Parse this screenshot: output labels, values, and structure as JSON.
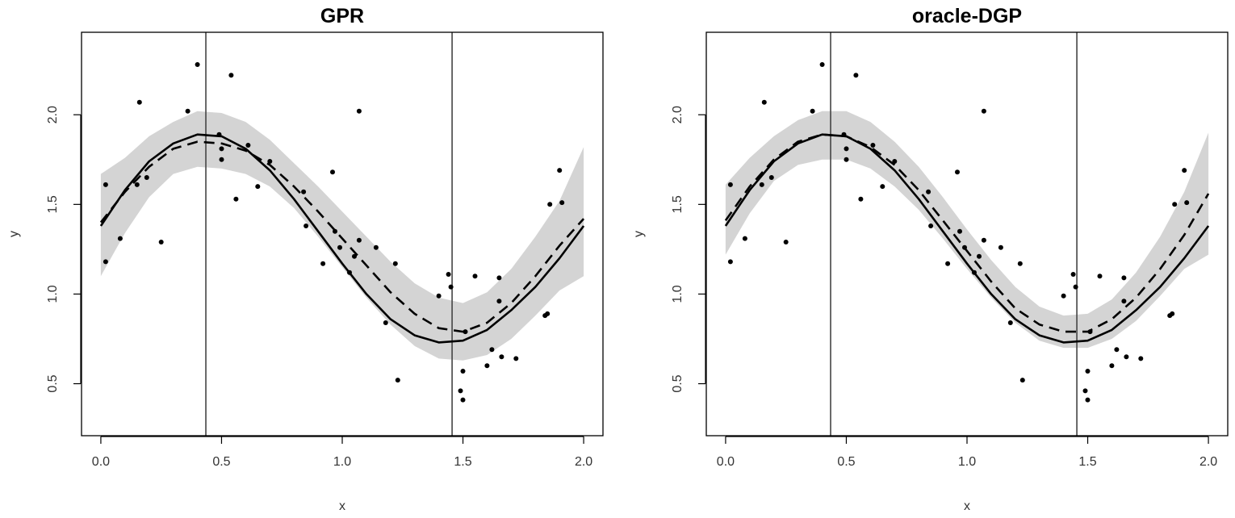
{
  "chart_data": [
    {
      "type": "line",
      "title": "GPR",
      "xlabel": "x",
      "ylabel": "y",
      "xlim": [
        -0.08,
        2.08
      ],
      "ylim": [
        0.21,
        2.46
      ],
      "xticks": [
        0.0,
        0.5,
        1.0,
        1.5,
        2.0
      ],
      "xtick_labels": [
        "0.0",
        "0.5",
        "1.0",
        "1.5",
        "2.0"
      ],
      "yticks": [
        0.5,
        1.0,
        1.5,
        2.0
      ],
      "ytick_labels": [
        "0.5",
        "1.0",
        "1.5",
        "2.0"
      ],
      "grid": false,
      "vlines": [
        0.435,
        1.455
      ],
      "colors": {
        "band": "#d4d4d4",
        "line": "#000000",
        "points": "#000000",
        "vline": "#444444"
      },
      "series": [
        {
          "style": "solid",
          "x": [
            0.0,
            0.1,
            0.2,
            0.3,
            0.4,
            0.5,
            0.6,
            0.7,
            0.8,
            0.9,
            1.0,
            1.1,
            1.2,
            1.3,
            1.4,
            1.5,
            1.6,
            1.7,
            1.8,
            1.9,
            2.0
          ],
          "y": [
            1.38,
            1.58,
            1.74,
            1.84,
            1.89,
            1.88,
            1.81,
            1.69,
            1.53,
            1.35,
            1.17,
            1.0,
            0.86,
            0.77,
            0.73,
            0.74,
            0.8,
            0.91,
            1.04,
            1.2,
            1.38
          ]
        },
        {
          "style": "dashed",
          "x": [
            0.0,
            0.1,
            0.2,
            0.3,
            0.4,
            0.5,
            0.6,
            0.7,
            0.8,
            0.9,
            1.0,
            1.1,
            1.2,
            1.3,
            1.4,
            1.5,
            1.6,
            1.7,
            1.8,
            1.9,
            2.0
          ],
          "y": [
            1.4,
            1.57,
            1.71,
            1.81,
            1.85,
            1.84,
            1.8,
            1.72,
            1.6,
            1.46,
            1.31,
            1.16,
            1.01,
            0.89,
            0.81,
            0.79,
            0.84,
            0.95,
            1.1,
            1.27,
            1.42
          ]
        }
      ],
      "band": {
        "x": [
          0.0,
          0.1,
          0.2,
          0.3,
          0.4,
          0.5,
          0.6,
          0.7,
          0.8,
          0.9,
          1.0,
          1.1,
          1.2,
          1.3,
          1.4,
          1.5,
          1.6,
          1.7,
          1.8,
          1.9,
          2.0
        ],
        "lower": [
          1.1,
          1.34,
          1.54,
          1.67,
          1.71,
          1.7,
          1.67,
          1.6,
          1.48,
          1.32,
          1.15,
          0.98,
          0.83,
          0.71,
          0.64,
          0.63,
          0.66,
          0.75,
          0.88,
          1.02,
          1.1
        ],
        "upper": [
          1.67,
          1.76,
          1.88,
          1.96,
          2.02,
          2.01,
          1.96,
          1.86,
          1.73,
          1.6,
          1.46,
          1.32,
          1.18,
          1.06,
          0.98,
          0.95,
          1.01,
          1.14,
          1.32,
          1.52,
          1.82
        ]
      },
      "points": {
        "x": [
          0.02,
          0.02,
          0.08,
          0.15,
          0.16,
          0.19,
          0.25,
          0.36,
          0.4,
          0.49,
          0.5,
          0.5,
          0.54,
          0.56,
          0.61,
          0.65,
          0.7,
          0.84,
          0.85,
          0.92,
          0.96,
          0.97,
          0.99,
          1.03,
          1.05,
          1.07,
          1.07,
          1.14,
          1.18,
          1.22,
          1.23,
          1.4,
          1.44,
          1.45,
          1.49,
          1.5,
          1.5,
          1.51,
          1.55,
          1.6,
          1.62,
          1.65,
          1.65,
          1.66,
          1.72,
          1.84,
          1.85,
          1.86,
          1.9,
          1.91
        ],
        "y": [
          1.61,
          1.18,
          1.31,
          1.61,
          2.07,
          1.65,
          1.29,
          2.02,
          2.28,
          1.89,
          1.81,
          1.75,
          2.22,
          1.53,
          1.83,
          1.6,
          1.74,
          1.57,
          1.38,
          1.17,
          1.68,
          1.35,
          1.26,
          1.12,
          1.21,
          1.3,
          2.02,
          1.26,
          0.84,
          1.17,
          0.52,
          0.99,
          1.11,
          1.04,
          0.46,
          0.41,
          0.57,
          0.79,
          1.1,
          0.6,
          0.69,
          1.09,
          0.96,
          0.65,
          0.64,
          0.88,
          0.89,
          1.5,
          1.69,
          1.51
        ]
      }
    },
    {
      "type": "line",
      "title": "oracle-DGP",
      "xlabel": "x",
      "ylabel": "y",
      "xlim": [
        -0.08,
        2.08
      ],
      "ylim": [
        0.21,
        2.46
      ],
      "xticks": [
        0.0,
        0.5,
        1.0,
        1.5,
        2.0
      ],
      "xtick_labels": [
        "0.0",
        "0.5",
        "1.0",
        "1.5",
        "2.0"
      ],
      "yticks": [
        0.5,
        1.0,
        1.5,
        2.0
      ],
      "ytick_labels": [
        "0.5",
        "1.0",
        "1.5",
        "2.0"
      ],
      "grid": false,
      "vlines": [
        0.435,
        1.455
      ],
      "colors": {
        "band": "#d4d4d4",
        "line": "#000000",
        "points": "#000000",
        "vline": "#444444"
      },
      "series": [
        {
          "style": "solid",
          "x": [
            0.0,
            0.1,
            0.2,
            0.3,
            0.4,
            0.5,
            0.6,
            0.7,
            0.8,
            0.9,
            1.0,
            1.1,
            1.2,
            1.3,
            1.4,
            1.5,
            1.6,
            1.7,
            1.8,
            1.9,
            2.0
          ],
          "y": [
            1.38,
            1.58,
            1.74,
            1.84,
            1.89,
            1.88,
            1.81,
            1.69,
            1.53,
            1.35,
            1.17,
            1.0,
            0.86,
            0.77,
            0.73,
            0.74,
            0.8,
            0.91,
            1.04,
            1.2,
            1.38
          ]
        },
        {
          "style": "dashed",
          "x": [
            0.0,
            0.1,
            0.2,
            0.3,
            0.4,
            0.5,
            0.6,
            0.7,
            0.8,
            0.9,
            1.0,
            1.1,
            1.2,
            1.3,
            1.4,
            1.5,
            1.6,
            1.7,
            1.8,
            1.9,
            2.0
          ],
          "y": [
            1.41,
            1.6,
            1.75,
            1.85,
            1.89,
            1.88,
            1.82,
            1.72,
            1.58,
            1.41,
            1.24,
            1.07,
            0.92,
            0.83,
            0.79,
            0.79,
            0.86,
            0.98,
            1.14,
            1.33,
            1.56
          ]
        }
      ],
      "band": {
        "x": [
          0.0,
          0.1,
          0.2,
          0.3,
          0.4,
          0.5,
          0.6,
          0.7,
          0.8,
          0.9,
          1.0,
          1.1,
          1.2,
          1.3,
          1.4,
          1.5,
          1.6,
          1.7,
          1.8,
          1.9,
          2.0
        ],
        "lower": [
          1.22,
          1.45,
          1.63,
          1.72,
          1.75,
          1.75,
          1.7,
          1.6,
          1.47,
          1.31,
          1.14,
          0.98,
          0.84,
          0.74,
          0.7,
          0.7,
          0.75,
          0.85,
          0.99,
          1.14,
          1.22
        ],
        "upper": [
          1.61,
          1.76,
          1.88,
          1.97,
          2.02,
          2.02,
          1.96,
          1.85,
          1.71,
          1.54,
          1.36,
          1.19,
          1.04,
          0.93,
          0.88,
          0.89,
          0.97,
          1.12,
          1.32,
          1.57,
          1.9
        ]
      },
      "points": {
        "x": [
          0.02,
          0.02,
          0.08,
          0.15,
          0.16,
          0.19,
          0.25,
          0.36,
          0.4,
          0.49,
          0.5,
          0.5,
          0.54,
          0.56,
          0.61,
          0.65,
          0.7,
          0.84,
          0.85,
          0.92,
          0.96,
          0.97,
          0.99,
          1.03,
          1.05,
          1.07,
          1.07,
          1.14,
          1.18,
          1.22,
          1.23,
          1.4,
          1.44,
          1.45,
          1.49,
          1.5,
          1.5,
          1.51,
          1.55,
          1.6,
          1.62,
          1.65,
          1.65,
          1.66,
          1.72,
          1.84,
          1.85,
          1.86,
          1.9,
          1.91
        ],
        "y": [
          1.61,
          1.18,
          1.31,
          1.61,
          2.07,
          1.65,
          1.29,
          2.02,
          2.28,
          1.89,
          1.81,
          1.75,
          2.22,
          1.53,
          1.83,
          1.6,
          1.74,
          1.57,
          1.38,
          1.17,
          1.68,
          1.35,
          1.26,
          1.12,
          1.21,
          1.3,
          2.02,
          1.26,
          0.84,
          1.17,
          0.52,
          0.99,
          1.11,
          1.04,
          0.46,
          0.41,
          0.57,
          0.79,
          1.1,
          0.6,
          0.69,
          1.09,
          0.96,
          0.65,
          0.64,
          0.88,
          0.89,
          1.5,
          1.69,
          1.51
        ]
      }
    }
  ]
}
